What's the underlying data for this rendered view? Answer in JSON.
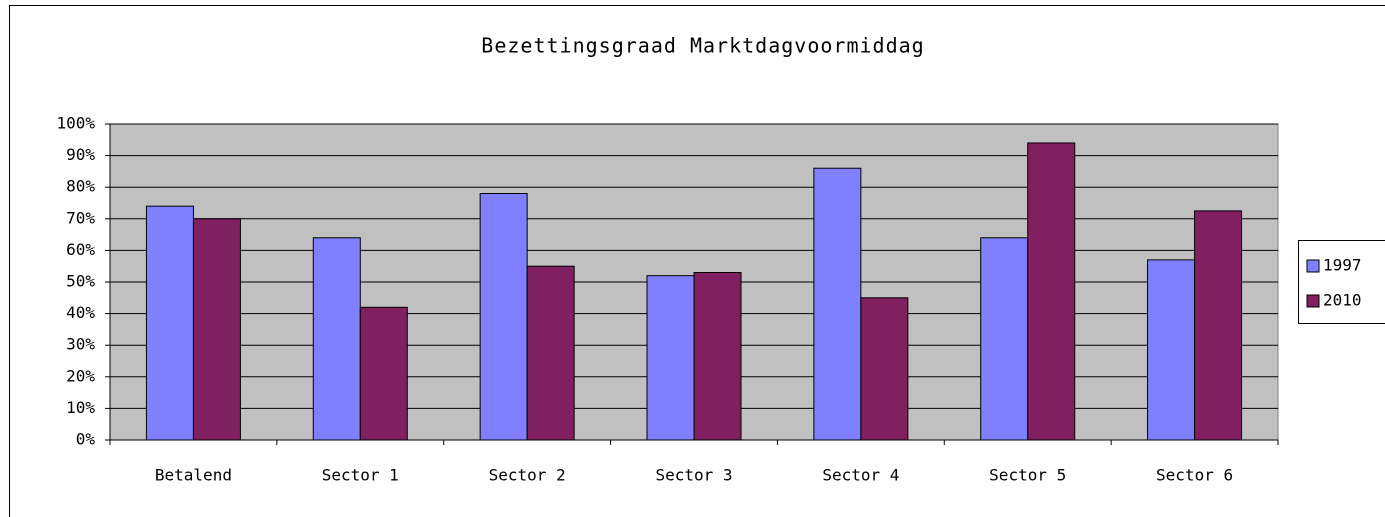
{
  "chart_data": {
    "type": "bar",
    "title": "Bezettingsgraad Marktdagvoormiddag",
    "categories": [
      "Betalend",
      "Sector 1",
      "Sector 2",
      "Sector 3",
      "Sector 4",
      "Sector 5",
      "Sector 6"
    ],
    "series": [
      {
        "name": "1997",
        "color": "#8080ff",
        "values": [
          74,
          64,
          78,
          52,
          86,
          64,
          57
        ]
      },
      {
        "name": "2010",
        "color": "#802060",
        "values": [
          70,
          42,
          55,
          53,
          45,
          94,
          72.5
        ]
      }
    ],
    "ylim": [
      0,
      100
    ],
    "yticks": [
      {
        "value": 0,
        "label": "0%"
      },
      {
        "value": 10,
        "label": "10%"
      },
      {
        "value": 20,
        "label": "20%"
      },
      {
        "value": 30,
        "label": "30%"
      },
      {
        "value": 40,
        "label": "40%"
      },
      {
        "value": 50,
        "label": "50%"
      },
      {
        "value": 60,
        "label": "60%"
      },
      {
        "value": 70,
        "label": "70%"
      },
      {
        "value": 80,
        "label": "80%"
      },
      {
        "value": 90,
        "label": "90%"
      },
      {
        "value": 100,
        "label": "100%"
      }
    ],
    "grid": true,
    "legend": "right"
  }
}
